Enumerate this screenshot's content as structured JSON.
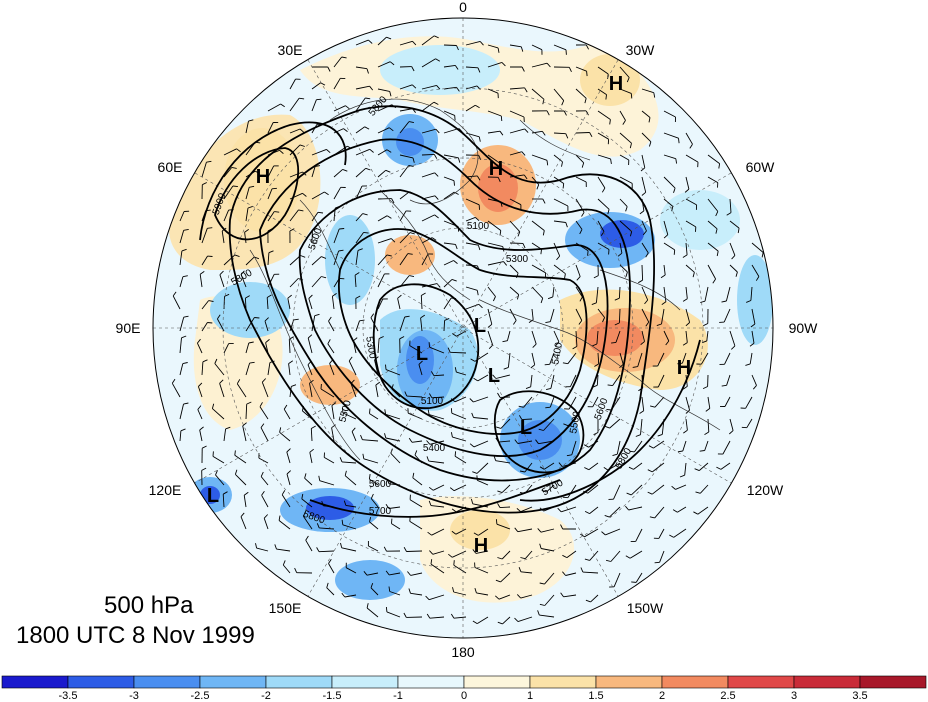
{
  "title": {
    "level": "500 hPa",
    "time": "1800 UTC 8 Nov 1999"
  },
  "longitude_labels": {
    "lon_0": "0",
    "lon_30e": "30E",
    "lon_30w": "30W",
    "lon_60e": "60E",
    "lon_60w": "60W",
    "lon_90e": "90E",
    "lon_90w": "90W",
    "lon_120e": "120E",
    "lon_120w": "120W",
    "lon_150e": "150E",
    "lon_150w": "150W",
    "lon_180": "180"
  },
  "pressure_centers": {
    "h1": "H",
    "h2": "H",
    "h3": "H",
    "h4": "H",
    "h5": "H",
    "l1": "L",
    "l2": "L",
    "l3": "L",
    "l4": "L",
    "l5": "L"
  },
  "contour_labels": {
    "c1": "5800",
    "c2": "5900",
    "c3": "5800",
    "c4": "5600",
    "c5": "5300",
    "c6": "5500",
    "c7": "5400",
    "c8": "5600",
    "c9": "5700",
    "c10": "5800",
    "c11": "5700",
    "c12": "5500",
    "c13": "5600",
    "c14": "5400",
    "c15": "5300",
    "c16": "5100",
    "c17": "5800",
    "c18": "5100"
  },
  "colorbar": {
    "labels": [
      "-3.5",
      "-3",
      "-2.5",
      "-2",
      "-1.5",
      "-1",
      "0",
      "1",
      "1.5",
      "2",
      "2.5",
      "3",
      "3.5"
    ],
    "colors": [
      "#1a1acd",
      "#2d5ce6",
      "#4a8ef0",
      "#6fb6f5",
      "#9fdaf8",
      "#c8eefb",
      "#e8f8fd",
      "#fdf6dc",
      "#fbe2a8",
      "#f8b87e",
      "#f28a60",
      "#e04848",
      "#c92b38",
      "#a8182a"
    ]
  },
  "colors": {
    "anomaly_neg_strong": "#2d5ce6",
    "anomaly_neg_mid": "#6fb6f5",
    "anomaly_neg_weak": "#c8eefb",
    "anomaly_pos_weak": "#fbe2a8",
    "anomaly_pos_mid": "#f8b87e",
    "anomaly_pos_strong": "#e04848"
  }
}
